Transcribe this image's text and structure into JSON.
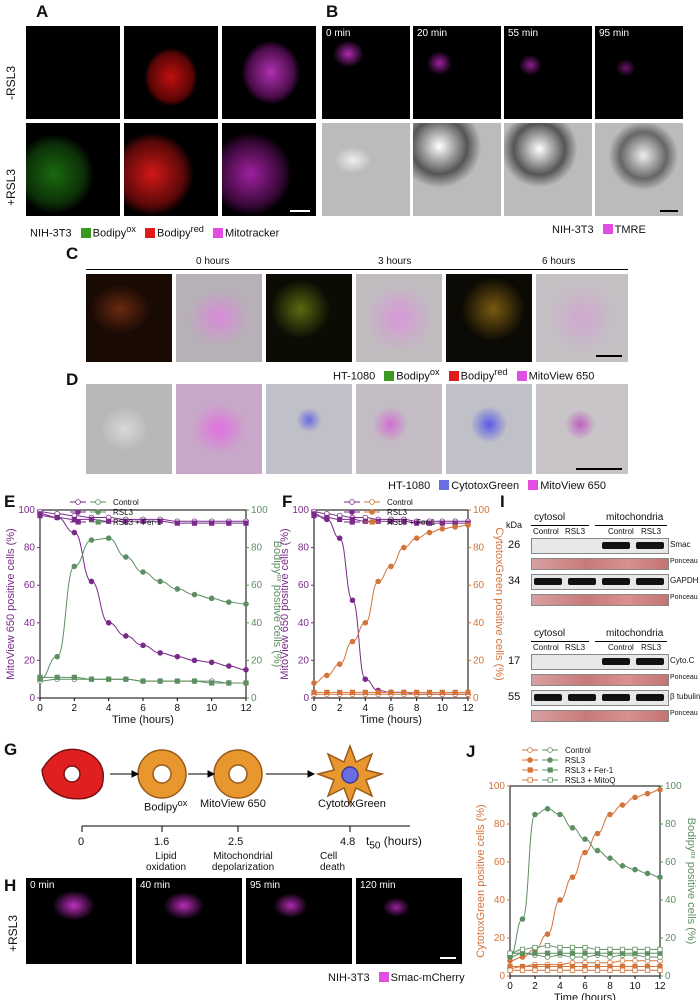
{
  "panels": {
    "A": {
      "label": "A",
      "row_top": "-RSL3",
      "row_bottom": "+RSL3",
      "legend": {
        "cell": "NIH-3T3",
        "items": [
          {
            "text": "Bodipy",
            "sup": "ox",
            "color": "#3a9a1f"
          },
          {
            "text": "Bodipy",
            "sup": "red",
            "color": "#e21a1a"
          },
          {
            "text": "Mitotracker",
            "sup": "",
            "color": "#e24ee2"
          }
        ]
      }
    },
    "B": {
      "label": "B",
      "times": [
        "0 min",
        "20 min",
        "55 min",
        "95 min"
      ],
      "legend": {
        "cell": "NIH-3T3",
        "items": [
          {
            "text": "TMRE",
            "sup": "",
            "color": "#e24ee2"
          }
        ]
      }
    },
    "C": {
      "label": "C",
      "times": [
        "0 hours",
        "3 hours",
        "6 hours"
      ],
      "legend": {
        "cell": "HT-1080",
        "items": [
          {
            "text": "Bodipy",
            "sup": "ox",
            "color": "#3a9a1f"
          },
          {
            "text": "Bodipy",
            "sup": "red",
            "color": "#e21a1a"
          },
          {
            "text": "MitoView 650",
            "sup": "",
            "color": "#e24ee2"
          }
        ]
      }
    },
    "D": {
      "label": "D",
      "legend": {
        "cell": "HT-1080",
        "items": [
          {
            "text": "CytotoxGreen",
            "sup": "",
            "color": "#6a6ee0"
          },
          {
            "text": "MitoView 650",
            "sup": "",
            "color": "#e24ee2"
          }
        ]
      }
    },
    "E": {
      "label": "E"
    },
    "F": {
      "label": "F"
    },
    "G": {
      "label": "G",
      "stages": [
        {
          "name": "Bodipy",
          "sup": "ox",
          "t": "1.6",
          "desc": "Lipid\noxidation"
        },
        {
          "name": "MitoView 650",
          "sup": "",
          "t": "2.5",
          "desc": "Mitochondrial\ndepolarization"
        },
        {
          "name": "CytotoxGreen",
          "sup": "",
          "t": "4.8",
          "desc": "Cell\ndeath"
        }
      ],
      "axis_zero": "0",
      "axis_label": "t",
      "axis_label_sub": "50",
      "axis_unit": " (hours)"
    },
    "H": {
      "label": "H",
      "row": "+RSL3",
      "times": [
        "0 min",
        "40 min",
        "95 min",
        "120 min"
      ],
      "legend": {
        "cell": "NIH-3T3",
        "items": [
          {
            "text": "Smac-mCherry",
            "sup": "",
            "color": "#e24ee2"
          }
        ]
      }
    },
    "I": {
      "label": "I",
      "kda": "kDa",
      "top": {
        "groups": [
          "cytosol",
          "mitochondria"
        ],
        "cols": [
          "Control",
          "RSL3",
          "Control",
          "RSL3"
        ],
        "rows": [
          {
            "kda": "26",
            "name": "Smac"
          },
          {
            "kda": "",
            "name": "Ponceau S"
          },
          {
            "kda": "34",
            "name": "GAPDH"
          },
          {
            "kda": "",
            "name": "Ponceau S"
          }
        ]
      },
      "bottom": {
        "groups": [
          "cytosol",
          "mitochondria"
        ],
        "cols": [
          "Control",
          "RSL3",
          "Control",
          "RSL3"
        ],
        "rows": [
          {
            "kda": "17",
            "name": "Cyto.C"
          },
          {
            "kda": "",
            "name": "Ponceau S"
          },
          {
            "kda": "55",
            "name": "β tubulin"
          },
          {
            "kda": "",
            "name": "Ponceau S"
          }
        ]
      }
    },
    "J": {
      "label": "J"
    }
  },
  "colors": {
    "purple": "#7a2a8a",
    "green": "#5e8f62",
    "orange": "#d4733a",
    "magenta": "#e24ee2"
  },
  "chart_data": [
    {
      "panel": "E",
      "type": "line",
      "xlabel": "Time (hours)",
      "ylabel_left": "MitoView 650 positive cells (%)",
      "ylabel_right": "Bodipy^ox positive cells (%)",
      "xlim": [
        0,
        12
      ],
      "ylim_left": [
        0,
        100
      ],
      "ylim_right": [
        0,
        100
      ],
      "x_ticks": [
        0,
        2,
        4,
        6,
        8,
        10,
        12
      ],
      "y_ticks": [
        0,
        20,
        40,
        60,
        80,
        100
      ],
      "series": [
        {
          "name": "Control",
          "axis": "left",
          "color": "#7a2a8a",
          "marker": "open-circle",
          "x": [
            0,
            1,
            2,
            3,
            4,
            5,
            6,
            7,
            8,
            9,
            10,
            11,
            12
          ],
          "y": [
            99,
            98,
            97,
            96,
            96,
            95,
            95,
            95,
            94,
            94,
            94,
            94,
            94
          ]
        },
        {
          "name": "RSL3",
          "axis": "left",
          "color": "#7a2a8a",
          "marker": "filled-circle",
          "x": [
            0,
            1,
            2,
            3,
            4,
            5,
            6,
            7,
            8,
            9,
            10,
            11,
            12
          ],
          "y": [
            98,
            96,
            88,
            62,
            40,
            33,
            28,
            24,
            22,
            20,
            19,
            17,
            15
          ]
        },
        {
          "name": "RSL3 + Fer-1",
          "axis": "left",
          "color": "#7a2a8a",
          "marker": "filled-square",
          "x": [
            0,
            1,
            2,
            3,
            4,
            5,
            6,
            7,
            8,
            9,
            10,
            11,
            12
          ],
          "y": [
            97,
            96,
            95,
            95,
            94,
            94,
            94,
            94,
            93,
            93,
            93,
            93,
            93
          ]
        },
        {
          "name": "Control",
          "axis": "right",
          "color": "#5e8f62",
          "marker": "open-circle",
          "x": [
            0,
            1,
            2,
            3,
            4,
            5,
            6,
            7,
            8,
            9,
            10,
            11,
            12
          ],
          "y": [
            9,
            10,
            10,
            10,
            10,
            10,
            9,
            9,
            9,
            9,
            9,
            8,
            8
          ]
        },
        {
          "name": "RSL3",
          "axis": "right",
          "color": "#5e8f62",
          "marker": "filled-circle",
          "x": [
            0,
            1,
            2,
            3,
            4,
            5,
            6,
            7,
            8,
            9,
            10,
            11,
            12
          ],
          "y": [
            10,
            22,
            70,
            84,
            85,
            75,
            67,
            62,
            58,
            55,
            53,
            51,
            50
          ]
        },
        {
          "name": "RSL3 + Fer-1",
          "axis": "right",
          "color": "#5e8f62",
          "marker": "filled-square",
          "x": [
            0,
            1,
            2,
            3,
            4,
            5,
            6,
            7,
            8,
            9,
            10,
            11,
            12
          ],
          "y": [
            11,
            11,
            11,
            10,
            10,
            10,
            9,
            9,
            9,
            9,
            8,
            8,
            8
          ]
        }
      ]
    },
    {
      "panel": "F",
      "type": "line",
      "xlabel": "Time (hours)",
      "ylabel_left": "MitoView 650 positive cells (%)",
      "ylabel_right": "CytotoxGreen positive cells (%)",
      "xlim": [
        0,
        12
      ],
      "ylim_left": [
        0,
        100
      ],
      "ylim_right": [
        0,
        100
      ],
      "x_ticks": [
        0,
        2,
        4,
        6,
        8,
        10,
        12
      ],
      "y_ticks": [
        0,
        20,
        40,
        60,
        80,
        100
      ],
      "series": [
        {
          "name": "Control",
          "axis": "left",
          "color": "#7a2a8a",
          "marker": "open-circle",
          "x": [
            0,
            1,
            2,
            3,
            4,
            5,
            6,
            7,
            8,
            9,
            10,
            11,
            12
          ],
          "y": [
            99,
            98,
            97,
            96,
            96,
            95,
            95,
            95,
            94,
            94,
            94,
            94,
            94
          ]
        },
        {
          "name": "RSL3",
          "axis": "left",
          "color": "#7a2a8a",
          "marker": "filled-circle",
          "x": [
            0,
            1,
            2,
            3,
            4,
            5,
            6,
            7,
            8,
            9,
            10,
            11,
            12
          ],
          "y": [
            98,
            95,
            85,
            52,
            10,
            4,
            3,
            3,
            2,
            2,
            2,
            2,
            2
          ]
        },
        {
          "name": "RSL3 + Fer-1",
          "axis": "left",
          "color": "#7a2a8a",
          "marker": "filled-square",
          "x": [
            0,
            1,
            2,
            3,
            4,
            5,
            6,
            7,
            8,
            9,
            10,
            11,
            12
          ],
          "y": [
            97,
            96,
            95,
            95,
            94,
            94,
            94,
            94,
            93,
            93,
            93,
            93,
            93
          ]
        },
        {
          "name": "Control",
          "axis": "right",
          "color": "#d4733a",
          "marker": "open-circle",
          "x": [
            0,
            1,
            2,
            3,
            4,
            5,
            6,
            7,
            8,
            9,
            10,
            11,
            12
          ],
          "y": [
            2,
            2,
            2,
            2,
            2,
            2,
            2,
            2,
            2,
            2,
            2,
            2,
            2
          ]
        },
        {
          "name": "RSL3",
          "axis": "right",
          "color": "#d4733a",
          "marker": "filled-circle",
          "x": [
            0,
            1,
            2,
            3,
            4,
            5,
            6,
            7,
            8,
            9,
            10,
            11,
            12
          ],
          "y": [
            8,
            12,
            18,
            30,
            40,
            62,
            70,
            80,
            85,
            88,
            90,
            91,
            92
          ]
        },
        {
          "name": "RSL3 + Fer-1",
          "axis": "right",
          "color": "#d4733a",
          "marker": "filled-square",
          "x": [
            0,
            1,
            2,
            3,
            4,
            5,
            6,
            7,
            8,
            9,
            10,
            11,
            12
          ],
          "y": [
            3,
            3,
            3,
            3,
            3,
            3,
            3,
            3,
            3,
            3,
            3,
            3,
            3
          ]
        }
      ]
    },
    {
      "panel": "J",
      "type": "line",
      "xlabel": "Time (hours)",
      "ylabel_left": "CytotoxGreen positive cells (%)",
      "ylabel_right": "Bodipy^ox positive cells (%)",
      "xlim": [
        0,
        12
      ],
      "ylim_left": [
        0,
        100
      ],
      "ylim_right": [
        0,
        100
      ],
      "x_ticks": [
        0,
        2,
        4,
        6,
        8,
        10,
        12
      ],
      "y_ticks": [
        0,
        20,
        40,
        60,
        80,
        100
      ],
      "series": [
        {
          "name": "Control",
          "axis": "left",
          "color": "#d4733a",
          "marker": "open-circle",
          "x": [
            0,
            1,
            2,
            3,
            4,
            5,
            6,
            7,
            8,
            9,
            10,
            11,
            12
          ],
          "y": [
            4,
            5,
            6,
            6,
            6,
            7,
            7,
            7,
            7,
            8,
            8,
            8,
            8
          ]
        },
        {
          "name": "RSL3",
          "axis": "left",
          "color": "#d4733a",
          "marker": "filled-circle",
          "x": [
            0,
            1,
            2,
            3,
            4,
            5,
            6,
            7,
            8,
            9,
            10,
            11,
            12
          ],
          "y": [
            8,
            10,
            14,
            22,
            40,
            52,
            65,
            75,
            85,
            90,
            94,
            96,
            98
          ]
        },
        {
          "name": "RSL3 + Fer-1",
          "axis": "left",
          "color": "#d4733a",
          "marker": "filled-square",
          "x": [
            0,
            1,
            2,
            3,
            4,
            5,
            6,
            7,
            8,
            9,
            10,
            11,
            12
          ],
          "y": [
            5,
            5,
            5,
            5,
            5,
            5,
            5,
            5,
            5,
            5,
            5,
            5,
            5
          ]
        },
        {
          "name": "RSL3 + MitoQ",
          "axis": "left",
          "color": "#d4733a",
          "marker": "open-square",
          "x": [
            0,
            1,
            2,
            3,
            4,
            5,
            6,
            7,
            8,
            9,
            10,
            11,
            12
          ],
          "y": [
            3,
            3,
            3,
            3,
            3,
            3,
            3,
            3,
            3,
            3,
            3,
            3,
            3
          ]
        },
        {
          "name": "Control",
          "axis": "right",
          "color": "#5e8f62",
          "marker": "open-circle",
          "x": [
            0,
            1,
            2,
            3,
            4,
            5,
            6,
            7,
            8,
            9,
            10,
            11,
            12
          ],
          "y": [
            10,
            12,
            11,
            10,
            11,
            10,
            10,
            11,
            10,
            11,
            11,
            10,
            10
          ]
        },
        {
          "name": "RSL3",
          "axis": "right",
          "color": "#5e8f62",
          "marker": "filled-circle",
          "x": [
            0,
            1,
            2,
            3,
            4,
            5,
            6,
            7,
            8,
            9,
            10,
            11,
            12
          ],
          "y": [
            10,
            30,
            85,
            88,
            85,
            78,
            72,
            66,
            62,
            58,
            56,
            54,
            52
          ]
        },
        {
          "name": "RSL3 + Fer-1",
          "axis": "right",
          "color": "#5e8f62",
          "marker": "filled-square",
          "x": [
            0,
            1,
            2,
            3,
            4,
            5,
            6,
            7,
            8,
            9,
            10,
            11,
            12
          ],
          "y": [
            12,
            12,
            12,
            12,
            12,
            12,
            12,
            12,
            12,
            12,
            12,
            12,
            12
          ]
        },
        {
          "name": "RSL3 + MitoQ",
          "axis": "right",
          "color": "#5e8f62",
          "marker": "open-square",
          "x": [
            0,
            1,
            2,
            3,
            4,
            5,
            6,
            7,
            8,
            9,
            10,
            11,
            12
          ],
          "y": [
            12,
            14,
            15,
            16,
            15,
            15,
            15,
            14,
            14,
            14,
            14,
            14,
            14
          ]
        }
      ]
    }
  ]
}
